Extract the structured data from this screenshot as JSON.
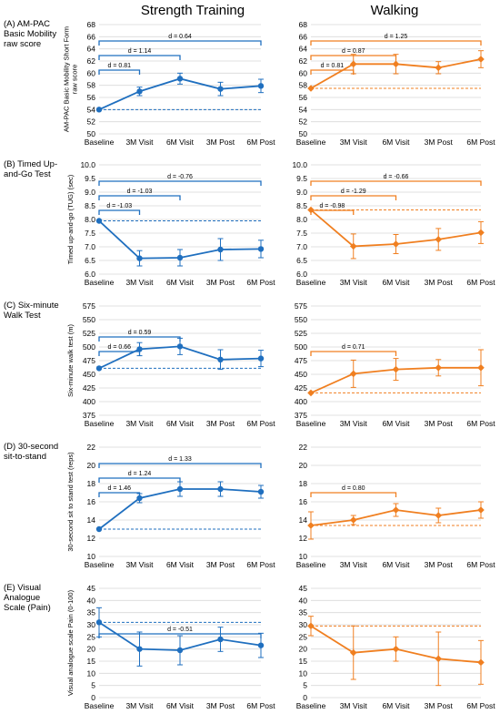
{
  "column_titles": [
    "Strength Training",
    "Walking"
  ],
  "categories": [
    "Baseline",
    "3M Visit",
    "6M Visit",
    "3M Post",
    "6M Post"
  ],
  "colors": {
    "strength": "#1f6fbf",
    "walking": "#f07f20"
  },
  "chart_data": [
    {
      "type": "line",
      "panel": "A",
      "group": "Strength Training",
      "row_label": [
        "(A) AM-PAC",
        "Basic Mobility",
        "raw score"
      ],
      "ylabel": [
        "AM-PAC Basic Mobility Short Form",
        "raw score"
      ],
      "ylim": [
        50,
        68
      ],
      "yticks": [
        50,
        52,
        54,
        56,
        58,
        60,
        62,
        64,
        66,
        68
      ],
      "tick_decimals": 0,
      "categories": [
        "Baseline",
        "3M Visit",
        "6M Visit",
        "3M Post",
        "6M Post"
      ],
      "values": [
        54.0,
        57.0,
        59.1,
        57.4,
        57.9
      ],
      "err": [
        0,
        0.7,
        0.9,
        1.1,
        1.1
      ],
      "baseline": 54.0,
      "effects": [
        {
          "label": "d = 0.81",
          "to": 1
        },
        {
          "label": "d = 1.14",
          "to": 2
        },
        {
          "label": "d = 0.64",
          "to": 4
        }
      ]
    },
    {
      "type": "line",
      "panel": "A",
      "group": "Walking",
      "ylim": [
        50,
        68
      ],
      "yticks": [
        50,
        52,
        54,
        56,
        58,
        60,
        62,
        64,
        66,
        68
      ],
      "tick_decimals": 0,
      "categories": [
        "Baseline",
        "3M Visit",
        "6M Visit",
        "3M Post",
        "6M Post"
      ],
      "values": [
        57.5,
        61.5,
        61.5,
        60.9,
        62.3
      ],
      "err": [
        0,
        1.6,
        1.6,
        1.0,
        1.4
      ],
      "baseline": 57.5,
      "effects": [
        {
          "label": "d = 0.81",
          "to": 1
        },
        {
          "label": "d = 0.87",
          "to": 2
        },
        {
          "label": "d = 1.25",
          "to": 4
        }
      ]
    },
    {
      "type": "line",
      "panel": "B",
      "group": "Strength Training",
      "row_label": [
        "(B) Timed Up-",
        "and-Go Test"
      ],
      "ylabel": [
        "Timed up-and-go (TUG) (sec)"
      ],
      "ylim": [
        6.0,
        10.0
      ],
      "yticks": [
        6.0,
        6.5,
        7.0,
        7.5,
        8.0,
        8.5,
        9.0,
        9.5,
        10.0
      ],
      "tick_decimals": 1,
      "categories": [
        "Baseline",
        "3M Visit",
        "6M Visit",
        "3M Post",
        "6M Post"
      ],
      "values": [
        7.95,
        6.58,
        6.6,
        6.9,
        6.92
      ],
      "err": [
        0,
        0.28,
        0.3,
        0.4,
        0.32
      ],
      "baseline": 7.95,
      "effects": [
        {
          "label": "d = -1.03",
          "to": 1
        },
        {
          "label": "d = -1.03",
          "to": 2
        },
        {
          "label": "d = -0.76",
          "to": 4
        }
      ]
    },
    {
      "type": "line",
      "panel": "B",
      "group": "Walking",
      "ylim": [
        6.0,
        10.0
      ],
      "yticks": [
        6.0,
        6.5,
        7.0,
        7.5,
        8.0,
        8.5,
        9.0,
        9.5,
        10.0
      ],
      "tick_decimals": 1,
      "categories": [
        "Baseline",
        "3M Visit",
        "6M Visit",
        "3M Post",
        "6M Post"
      ],
      "values": [
        8.35,
        7.02,
        7.1,
        7.27,
        7.52
      ],
      "err": [
        0,
        0.45,
        0.35,
        0.4,
        0.4
      ],
      "baseline": 8.35,
      "effects": [
        {
          "label": "d = -0.98",
          "to": 1
        },
        {
          "label": "d = -1.29",
          "to": 2
        },
        {
          "label": "d = -0.66",
          "to": 4
        }
      ]
    },
    {
      "type": "line",
      "panel": "C",
      "group": "Strength Training",
      "row_label": [
        "(C) Six-minute",
        "Walk Test"
      ],
      "ylabel": [
        "Six-minute walk test (m)"
      ],
      "ylim": [
        375,
        575
      ],
      "yticks": [
        375,
        400,
        425,
        450,
        475,
        500,
        525,
        550,
        575
      ],
      "tick_decimals": 0,
      "categories": [
        "Baseline",
        "3M Visit",
        "6M Visit",
        "3M Post",
        "6M Post"
      ],
      "values": [
        461,
        496,
        501,
        477,
        479
      ],
      "err": [
        0,
        12,
        15,
        18,
        15
      ],
      "baseline": 461,
      "effects": [
        {
          "label": "d = 0.66",
          "to": 1
        },
        {
          "label": "d = 0.59",
          "to": 2
        }
      ]
    },
    {
      "type": "line",
      "panel": "C",
      "group": "Walking",
      "ylim": [
        375,
        575
      ],
      "yticks": [
        375,
        400,
        425,
        450,
        475,
        500,
        525,
        550,
        575
      ],
      "tick_decimals": 0,
      "categories": [
        "Baseline",
        "3M Visit",
        "6M Visit",
        "3M Post",
        "6M Post"
      ],
      "values": [
        416,
        451,
        459,
        462,
        462
      ],
      "err": [
        0,
        25,
        20,
        15,
        33
      ],
      "baseline": 416,
      "effects": [
        {
          "label": "d = 0.71",
          "to": 2
        }
      ]
    },
    {
      "type": "line",
      "panel": "D",
      "group": "Strength Training",
      "row_label": [
        "(D) 30-second",
        "sit-to-stand"
      ],
      "ylabel": [
        "30-second sit to stand test (reps)"
      ],
      "ylim": [
        10,
        22
      ],
      "yticks": [
        10,
        12,
        14,
        16,
        18,
        20,
        22
      ],
      "tick_decimals": 0,
      "categories": [
        "Baseline",
        "3M Visit",
        "6M Visit",
        "3M Post",
        "6M Post"
      ],
      "values": [
        13.0,
        16.4,
        17.4,
        17.4,
        17.1
      ],
      "err": [
        0,
        0.5,
        0.8,
        0.8,
        0.7
      ],
      "baseline": 13.0,
      "effects": [
        {
          "label": "d = 1.46",
          "to": 1
        },
        {
          "label": "d = 1.24",
          "to": 2
        },
        {
          "label": "d = 1.33",
          "to": 4
        }
      ]
    },
    {
      "type": "line",
      "panel": "D",
      "group": "Walking",
      "ylim": [
        10,
        22
      ],
      "yticks": [
        10,
        12,
        14,
        16,
        18,
        20,
        22
      ],
      "tick_decimals": 0,
      "categories": [
        "Baseline",
        "3M Visit",
        "6M Visit",
        "3M Post",
        "6M Post"
      ],
      "values": [
        13.4,
        14.0,
        15.1,
        14.5,
        15.1
      ],
      "err": [
        1.5,
        0.5,
        0.7,
        0.8,
        0.9
      ],
      "baseline": 13.4,
      "effects": [
        {
          "label": "d = 0.80",
          "to": 2
        }
      ]
    },
    {
      "type": "line",
      "panel": "E",
      "group": "Strength Training",
      "row_label": [
        "(E) Visual",
        "Analogue",
        "Scale (Pain)"
      ],
      "ylabel": [
        "Visual analogue scale Pain (0-100)"
      ],
      "ylim": [
        0,
        45
      ],
      "yticks": [
        0,
        5,
        10,
        15,
        20,
        25,
        30,
        35,
        40,
        45
      ],
      "tick_decimals": 0,
      "categories": [
        "Baseline",
        "3M Visit",
        "6M Visit",
        "3M Post",
        "6M Post"
      ],
      "values": [
        31,
        20,
        19.5,
        24,
        21.5
      ],
      "err": [
        6,
        7,
        6,
        5,
        5
      ],
      "baseline": 31,
      "effects": [
        {
          "label": "d = -0.51",
          "to": 4
        }
      ]
    },
    {
      "type": "line",
      "panel": "E",
      "group": "Walking",
      "ylim": [
        0,
        45
      ],
      "yticks": [
        0,
        5,
        10,
        15,
        20,
        25,
        30,
        35,
        40,
        45
      ],
      "tick_decimals": 0,
      "categories": [
        "Baseline",
        "3M Visit",
        "6M Visit",
        "3M Post",
        "6M Post"
      ],
      "values": [
        29.5,
        18.5,
        20,
        16,
        14.5
      ],
      "err": [
        4,
        11,
        5,
        11,
        9
      ],
      "baseline": 29.5,
      "effects": []
    }
  ]
}
